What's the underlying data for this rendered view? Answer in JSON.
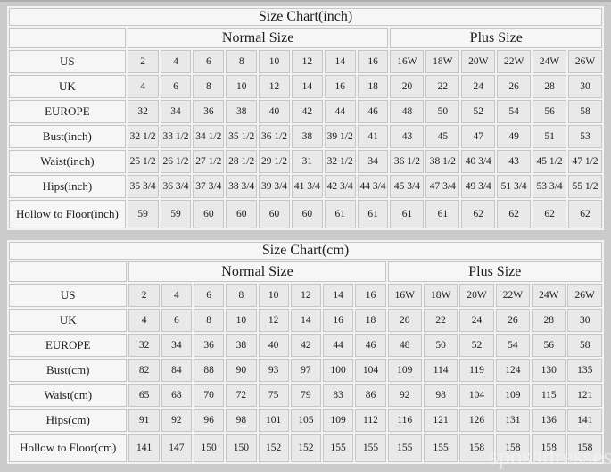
{
  "colors": {
    "page_bg": "#cbcbcb",
    "cell_bg": "#e9e9e9",
    "header_bg": "#f6f6f6",
    "border": "#c6c6c6",
    "text": "#1c1c1c"
  },
  "watermark": {
    "text": "sposadresses"
  },
  "chart_data": {
    "type": "table",
    "tables": [
      {
        "title": "Size Chart(inch)",
        "normal_header": "Normal Size",
        "plus_header": "Plus Size",
        "rows": [
          {
            "label": "US",
            "normal": [
              "2",
              "4",
              "6",
              "8",
              "10",
              "12",
              "14",
              "16"
            ],
            "plus": [
              "16W",
              "18W",
              "20W",
              "22W",
              "24W",
              "26W"
            ]
          },
          {
            "label": "UK",
            "normal": [
              "4",
              "6",
              "8",
              "10",
              "12",
              "14",
              "16",
              "18"
            ],
            "plus": [
              "20",
              "22",
              "24",
              "26",
              "28",
              "30"
            ]
          },
          {
            "label": "EUROPE",
            "normal": [
              "32",
              "34",
              "36",
              "38",
              "40",
              "42",
              "44",
              "46"
            ],
            "plus": [
              "48",
              "50",
              "52",
              "54",
              "56",
              "58"
            ]
          },
          {
            "label": "Bust(inch)",
            "normal": [
              "32 1/2",
              "33 1/2",
              "34 1/2",
              "35 1/2",
              "36 1/2",
              "38",
              "39 1/2",
              "41"
            ],
            "plus": [
              "43",
              "45",
              "47",
              "49",
              "51",
              "53"
            ]
          },
          {
            "label": "Waist(inch)",
            "normal": [
              "25 1/2",
              "26 1/2",
              "27 1/2",
              "28 1/2",
              "29 1/2",
              "31",
              "32 1/2",
              "34"
            ],
            "plus": [
              "36 1/2",
              "38 1/2",
              "40 3/4",
              "43",
              "45 1/2",
              "47 1/2"
            ]
          },
          {
            "label": "Hips(inch)",
            "normal": [
              "35 3/4",
              "36 3/4",
              "37 3/4",
              "38 3/4",
              "39 3/4",
              "41 3/4",
              "42 3/4",
              "44 3/4"
            ],
            "plus": [
              "45 3/4",
              "47 3/4",
              "49 3/4",
              "51 3/4",
              "53 3/4",
              "55 1/2"
            ]
          },
          {
            "label": "Hollow to Floor(inch)",
            "normal": [
              "59",
              "59",
              "60",
              "60",
              "60",
              "60",
              "61",
              "61"
            ],
            "plus": [
              "61",
              "61",
              "62",
              "62",
              "62",
              "62"
            ],
            "tall": true
          }
        ]
      },
      {
        "title": "Size Chart(cm)",
        "normal_header": "Normal Size",
        "plus_header": "Plus Size",
        "rows": [
          {
            "label": "US",
            "normal": [
              "2",
              "4",
              "6",
              "8",
              "10",
              "12",
              "14",
              "16"
            ],
            "plus": [
              "16W",
              "18W",
              "20W",
              "22W",
              "24W",
              "26W"
            ]
          },
          {
            "label": "UK",
            "normal": [
              "4",
              "6",
              "8",
              "10",
              "12",
              "14",
              "16",
              "18"
            ],
            "plus": [
              "20",
              "22",
              "24",
              "26",
              "28",
              "30"
            ]
          },
          {
            "label": "EUROPE",
            "normal": [
              "32",
              "34",
              "36",
              "38",
              "40",
              "42",
              "44",
              "46"
            ],
            "plus": [
              "48",
              "50",
              "52",
              "54",
              "56",
              "58"
            ]
          },
          {
            "label": "Bust(cm)",
            "normal": [
              "82",
              "84",
              "88",
              "90",
              "93",
              "97",
              "100",
              "104"
            ],
            "plus": [
              "109",
              "114",
              "119",
              "124",
              "130",
              "135"
            ]
          },
          {
            "label": "Waist(cm)",
            "normal": [
              "65",
              "68",
              "70",
              "72",
              "75",
              "79",
              "83",
              "86"
            ],
            "plus": [
              "92",
              "98",
              "104",
              "109",
              "115",
              "121"
            ]
          },
          {
            "label": "Hips(cm)",
            "normal": [
              "91",
              "92",
              "96",
              "98",
              "101",
              "105",
              "109",
              "112"
            ],
            "plus": [
              "116",
              "121",
              "126",
              "131",
              "136",
              "141"
            ]
          },
          {
            "label": "Hollow to Floor(cm)",
            "normal": [
              "141",
              "147",
              "150",
              "150",
              "152",
              "152",
              "155",
              "155"
            ],
            "plus": [
              "155",
              "155",
              "158",
              "158",
              "158",
              "158"
            ],
            "tall": true
          }
        ]
      }
    ]
  }
}
